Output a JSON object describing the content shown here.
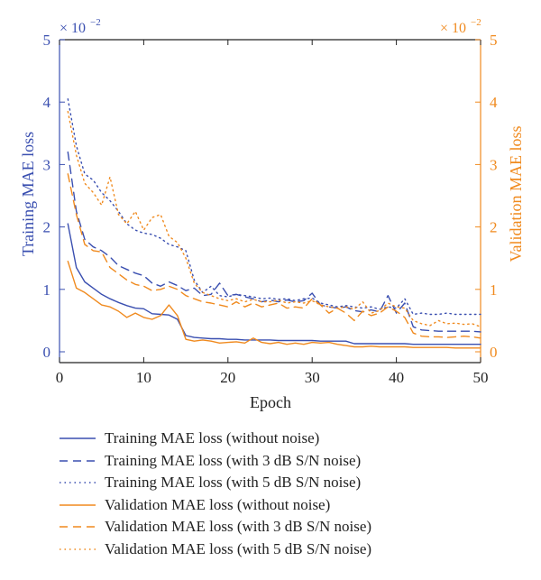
{
  "colors": {
    "training": "#3a4fb0",
    "validation": "#f08a1e",
    "axis": "#222222"
  },
  "chart_data": {
    "type": "line",
    "xlabel": "Epoch",
    "ylabel_left": "Training MAE loss",
    "ylabel_right": "Validation MAE loss",
    "y_multiplier_label": "× 10",
    "y_multiplier_exp": "−2",
    "xlim": [
      0,
      50
    ],
    "ylim": [
      0,
      5
    ],
    "x_ticks": [
      "0",
      "10",
      "20",
      "30",
      "40",
      "50"
    ],
    "y_ticks": [
      "0",
      "1",
      "2",
      "3",
      "4",
      "5"
    ],
    "grid": false,
    "legend_position": "below",
    "x": [
      1,
      2,
      3,
      4,
      5,
      6,
      7,
      8,
      9,
      10,
      11,
      12,
      13,
      14,
      15,
      16,
      17,
      18,
      19,
      20,
      21,
      22,
      23,
      24,
      25,
      26,
      27,
      28,
      29,
      30,
      31,
      32,
      33,
      34,
      35,
      36,
      37,
      38,
      39,
      40,
      41,
      42,
      43,
      44,
      45,
      46,
      47,
      48,
      49,
      50
    ],
    "series": [
      {
        "name": "Training MAE loss (without noise)",
        "axis": "left",
        "style": "solid",
        "values": [
          2.05,
          1.35,
          1.12,
          1.02,
          0.92,
          0.85,
          0.79,
          0.74,
          0.7,
          0.69,
          0.61,
          0.6,
          0.59,
          0.52,
          0.26,
          0.23,
          0.22,
          0.21,
          0.21,
          0.2,
          0.2,
          0.19,
          0.19,
          0.19,
          0.19,
          0.18,
          0.18,
          0.18,
          0.18,
          0.18,
          0.17,
          0.17,
          0.17,
          0.17,
          0.13,
          0.13,
          0.13,
          0.13,
          0.13,
          0.13,
          0.13,
          0.12,
          0.12,
          0.12,
          0.12,
          0.12,
          0.12,
          0.12,
          0.12,
          0.12
        ]
      },
      {
        "name": "Training MAE loss (with 3 dB S/N noise)",
        "axis": "left",
        "style": "dashed",
        "values": [
          3.2,
          2.25,
          1.8,
          1.68,
          1.62,
          1.52,
          1.38,
          1.32,
          1.26,
          1.22,
          1.1,
          1.05,
          1.12,
          1.06,
          0.98,
          1.02,
          0.9,
          0.92,
          1.1,
          0.9,
          0.92,
          0.88,
          0.85,
          0.8,
          0.83,
          0.8,
          0.83,
          0.8,
          0.82,
          0.94,
          0.75,
          0.72,
          0.7,
          0.72,
          0.66,
          0.64,
          0.67,
          0.64,
          0.9,
          0.62,
          0.78,
          0.4,
          0.35,
          0.34,
          0.33,
          0.33,
          0.33,
          0.33,
          0.33,
          0.32
        ]
      },
      {
        "name": "Training MAE loss (with 5 dB S/N noise)",
        "axis": "left",
        "style": "dotted",
        "values": [
          4.05,
          3.3,
          2.85,
          2.75,
          2.55,
          2.42,
          2.25,
          2.05,
          1.95,
          1.9,
          1.88,
          1.82,
          1.72,
          1.68,
          1.62,
          1.15,
          0.95,
          1.05,
          0.9,
          0.88,
          0.92,
          0.9,
          0.88,
          0.85,
          0.86,
          0.84,
          0.85,
          0.82,
          0.85,
          0.86,
          0.78,
          0.75,
          0.72,
          0.74,
          0.72,
          0.7,
          0.72,
          0.68,
          0.72,
          0.7,
          0.85,
          0.6,
          0.62,
          0.6,
          0.6,
          0.62,
          0.6,
          0.6,
          0.6,
          0.6
        ]
      },
      {
        "name": "Validation MAE loss (without noise)",
        "axis": "right",
        "style": "solid",
        "values": [
          1.45,
          1.02,
          0.95,
          0.85,
          0.75,
          0.72,
          0.65,
          0.55,
          0.62,
          0.55,
          0.52,
          0.58,
          0.75,
          0.58,
          0.2,
          0.17,
          0.19,
          0.17,
          0.14,
          0.15,
          0.16,
          0.14,
          0.22,
          0.15,
          0.13,
          0.15,
          0.12,
          0.14,
          0.12,
          0.15,
          0.14,
          0.15,
          0.12,
          0.1,
          0.08,
          0.08,
          0.09,
          0.08,
          0.08,
          0.08,
          0.08,
          0.07,
          0.07,
          0.07,
          0.07,
          0.07,
          0.06,
          0.06,
          0.06,
          0.06
        ]
      },
      {
        "name": "Validation MAE loss (with 3 dB S/N noise)",
        "axis": "right",
        "style": "dashed",
        "values": [
          2.85,
          2.2,
          1.72,
          1.62,
          1.6,
          1.35,
          1.25,
          1.15,
          1.08,
          1.05,
          0.98,
          1.0,
          1.05,
          1.0,
          0.9,
          0.85,
          0.8,
          0.78,
          0.75,
          0.72,
          0.8,
          0.72,
          0.78,
          0.72,
          0.75,
          0.78,
          0.7,
          0.72,
          0.7,
          0.85,
          0.75,
          0.62,
          0.7,
          0.62,
          0.5,
          0.65,
          0.58,
          0.62,
          0.72,
          0.65,
          0.55,
          0.3,
          0.25,
          0.24,
          0.24,
          0.23,
          0.24,
          0.25,
          0.24,
          0.22
        ]
      },
      {
        "name": "Validation MAE loss (with 5 dB S/N noise)",
        "axis": "right",
        "style": "dotted",
        "values": [
          3.85,
          3.15,
          2.7,
          2.55,
          2.35,
          2.8,
          2.2,
          2.05,
          2.25,
          1.95,
          2.15,
          2.2,
          1.85,
          1.75,
          1.5,
          1.1,
          0.95,
          0.9,
          0.85,
          0.82,
          0.85,
          0.8,
          0.84,
          0.8,
          0.8,
          0.83,
          0.78,
          0.8,
          0.78,
          0.82,
          0.75,
          0.72,
          0.7,
          0.72,
          0.68,
          0.8,
          0.62,
          0.66,
          0.78,
          0.72,
          0.7,
          0.5,
          0.45,
          0.42,
          0.5,
          0.45,
          0.46,
          0.44,
          0.45,
          0.4
        ]
      }
    ]
  }
}
